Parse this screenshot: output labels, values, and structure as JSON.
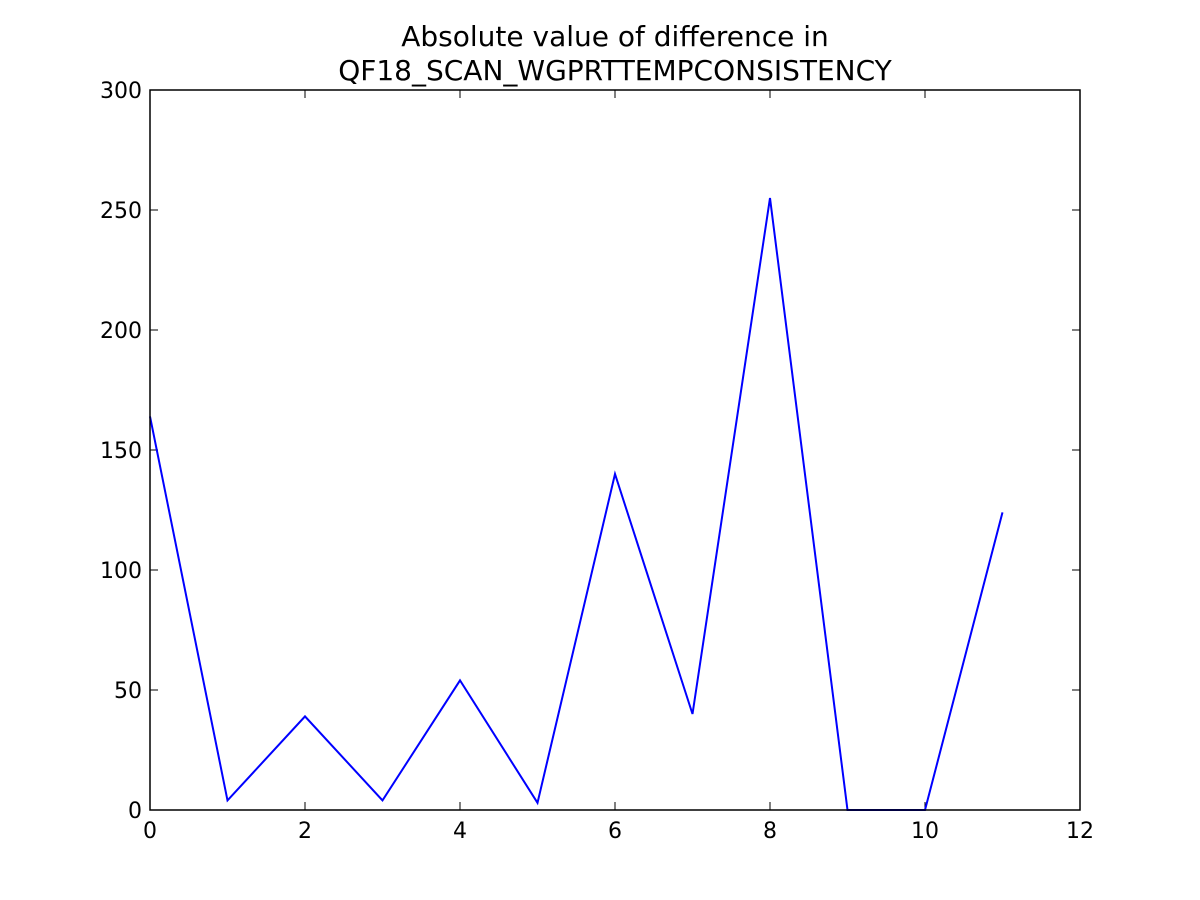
{
  "chart_data": {
    "type": "line",
    "title_lines": [
      "Absolute value of difference in",
      "QF18_SCAN_WGPRTTEMPCONSISTENCY"
    ],
    "xlabel": "",
    "ylabel": "",
    "xlim": [
      0,
      12
    ],
    "ylim": [
      0,
      300
    ],
    "x_ticks": [
      0,
      2,
      4,
      6,
      8,
      10,
      12
    ],
    "y_ticks": [
      0,
      50,
      100,
      150,
      200,
      250,
      300
    ],
    "grid": false,
    "series": [
      {
        "color": "#0000ff",
        "x": [
          0,
          1,
          2,
          3,
          4,
          5,
          6,
          7,
          8,
          9,
          10,
          11
        ],
        "y": [
          164,
          4,
          39,
          4,
          54,
          3,
          140,
          40,
          255,
          0,
          0,
          124
        ]
      }
    ]
  }
}
